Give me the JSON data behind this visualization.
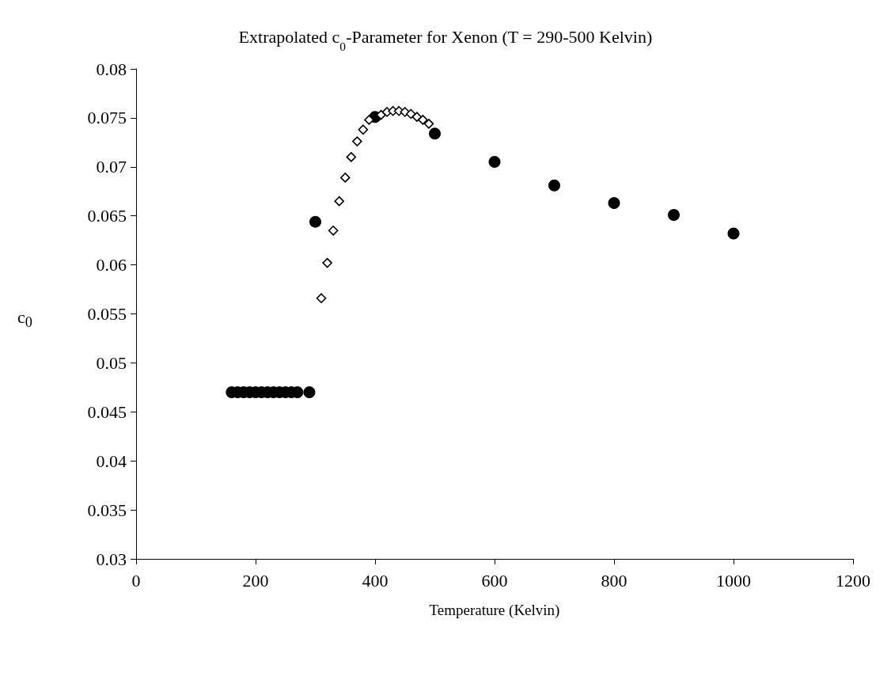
{
  "chart_data": {
    "type": "scatter",
    "title": "Extrapolated c$_{0}$-Parameter for Xenon (T = 290-500 Kelvin)",
    "xlabel": "Temperature (Kelvin)",
    "ylabel": "c$_{0}$",
    "xlim": [
      0,
      1200
    ],
    "xticks": [
      0,
      200,
      400,
      600,
      800,
      1000,
      1200
    ],
    "ylim": [
      0.03,
      0.08
    ],
    "yticks": [
      0.03,
      0.035,
      0.04,
      0.045,
      0.05,
      0.055,
      0.06,
      0.065,
      0.07,
      0.075,
      0.08
    ],
    "grid": false,
    "series": [
      {
        "color": "#000000",
        "marker": "circle",
        "x": [
          160,
          170,
          180,
          190,
          200,
          210,
          220,
          230,
          240,
          250,
          260,
          270,
          290,
          300,
          400,
          500,
          600,
          700,
          800,
          900,
          1000
        ],
        "values": [
          0.047,
          0.047,
          0.047,
          0.047,
          0.047,
          0.047,
          0.047,
          0.047,
          0.047,
          0.047,
          0.047,
          0.047,
          0.047,
          0.0644,
          0.0751,
          0.0734,
          0.0705,
          0.0681,
          0.0663,
          0.0651,
          0.0632
        ]
      },
      {
        "color": "#000000",
        "marker": "diamond",
        "x": [
          310,
          320,
          330,
          340,
          350,
          360,
          370,
          380,
          390,
          410,
          420,
          430,
          440,
          450,
          460,
          470,
          480,
          490
        ],
        "values": [
          0.0566,
          0.0602,
          0.0635,
          0.0665,
          0.0689,
          0.071,
          0.0726,
          0.0738,
          0.0748,
          0.0753,
          0.0756,
          0.0757,
          0.0757,
          0.0756,
          0.0754,
          0.0751,
          0.0748,
          0.0744
        ]
      }
    ]
  }
}
